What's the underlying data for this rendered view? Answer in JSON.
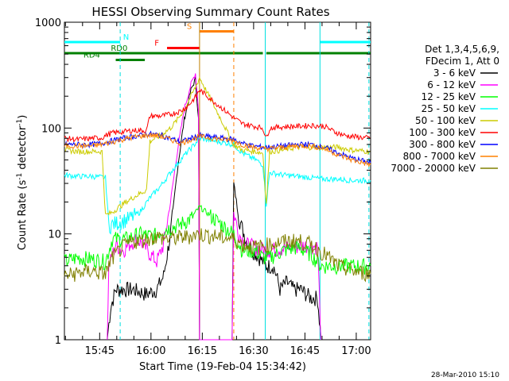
{
  "chart_data": {
    "type": "line",
    "title": "HESSI Observing Summary Count Rates",
    "xlabel": "Start Time (19-Feb-04 15:34:42)",
    "ylabel_main": "Count Rate (s",
    "ylabel_sup1": "-1",
    "ylabel_mid": " detector",
    "ylabel_sup2": "-1",
    "ylabel_end": ")",
    "y_scale": "log",
    "ylim": [
      1,
      1000
    ],
    "xlim_minutes": [
      0,
      89.5
    ],
    "x_ticks": [
      {
        "label": "15:45",
        "minute": 10.3
      },
      {
        "label": "16:00",
        "minute": 25.3
      },
      {
        "label": "16:15",
        "minute": 40.3
      },
      {
        "label": "16:30",
        "minute": 55.3
      },
      {
        "label": "16:45",
        "minute": 70.3
      },
      {
        "label": "17:00",
        "minute": 85.3
      }
    ],
    "y_ticks": [
      {
        "label": "1",
        "value": 1
      },
      {
        "label": "10",
        "value": 10
      },
      {
        "label": "100",
        "value": 100
      },
      {
        "label": "1000",
        "value": 1000
      }
    ],
    "legend_header": [
      "Det 1,3,4,5,6,9,",
      "FDecim 1, Att 0"
    ],
    "series": [
      {
        "name": "3 - 6 keV",
        "color": "#000000",
        "points": [
          [
            12.5,
            1
          ],
          [
            13.5,
            2
          ],
          [
            15,
            3
          ],
          [
            17,
            3
          ],
          [
            20,
            3
          ],
          [
            24,
            2.7
          ],
          [
            27,
            3
          ],
          [
            29,
            4
          ],
          [
            31,
            10
          ],
          [
            33,
            40
          ],
          [
            35,
            120
          ],
          [
            37,
            230
          ],
          [
            38.3,
            290
          ],
          [
            39.2,
            120
          ],
          [
            39.5,
            1
          ],
          [
            49,
            1
          ],
          [
            49.5,
            30
          ],
          [
            51,
            14
          ],
          [
            53,
            9
          ],
          [
            55,
            7
          ],
          [
            57,
            6
          ],
          [
            59,
            5
          ],
          [
            61,
            5
          ],
          [
            62,
            4
          ],
          [
            63,
            3
          ],
          [
            65,
            3.5
          ],
          [
            67,
            3
          ],
          [
            69,
            3
          ],
          [
            72,
            2.5
          ],
          [
            74,
            2.5
          ],
          [
            75,
            1
          ]
        ]
      },
      {
        "name": "6 - 12 keV",
        "color": "#ff00ff",
        "points": [
          [
            12.5,
            1
          ],
          [
            13,
            5
          ],
          [
            15,
            8
          ],
          [
            17,
            7
          ],
          [
            19,
            8
          ],
          [
            21,
            9
          ],
          [
            23,
            8
          ],
          [
            25,
            6.5
          ],
          [
            27,
            5.5
          ],
          [
            29,
            8
          ],
          [
            31,
            20
          ],
          [
            33,
            60
          ],
          [
            35,
            150
          ],
          [
            37,
            260
          ],
          [
            38.3,
            330
          ],
          [
            39.2,
            150
          ],
          [
            39.5,
            1
          ],
          [
            49,
            1
          ],
          [
            49.5,
            16
          ],
          [
            51,
            10
          ],
          [
            53,
            8
          ],
          [
            56,
            7.5
          ],
          [
            59,
            7
          ],
          [
            62,
            7.2
          ],
          [
            66,
            7.5
          ],
          [
            70,
            7.8
          ],
          [
            74,
            7.6
          ],
          [
            75,
            1
          ]
        ]
      },
      {
        "name": "12 - 25 keV",
        "color": "#00ff00",
        "points": [
          [
            0,
            5.5
          ],
          [
            4,
            6
          ],
          [
            8,
            5.8
          ],
          [
            12,
            5.5
          ],
          [
            14,
            9
          ],
          [
            18,
            9
          ],
          [
            22,
            10
          ],
          [
            26,
            9.5
          ],
          [
            29,
            11
          ],
          [
            33,
            12
          ],
          [
            37,
            14
          ],
          [
            39.5,
            18
          ],
          [
            49.5,
            10
          ],
          [
            52,
            7
          ],
          [
            56,
            7
          ],
          [
            58,
            6
          ],
          [
            60,
            6
          ],
          [
            64,
            7
          ],
          [
            68,
            7.5
          ],
          [
            72,
            6.5
          ],
          [
            75,
            5
          ],
          [
            79,
            5
          ],
          [
            84,
            5
          ],
          [
            89.5,
            5
          ]
        ]
      },
      {
        "name": "25 - 50 keV",
        "color": "#00ffff",
        "points": [
          [
            0,
            36
          ],
          [
            4,
            35
          ],
          [
            8,
            35
          ],
          [
            12,
            34
          ],
          [
            13,
            12
          ],
          [
            16,
            13
          ],
          [
            19,
            14
          ],
          [
            22,
            16
          ],
          [
            25,
            22
          ],
          [
            28,
            28
          ],
          [
            31,
            38
          ],
          [
            35,
            55
          ],
          [
            38,
            70
          ],
          [
            39.5,
            80
          ],
          [
            49.5,
            70
          ],
          [
            52,
            58
          ],
          [
            56,
            50
          ],
          [
            58,
            45
          ],
          [
            59,
            19
          ],
          [
            60,
            38
          ],
          [
            64,
            36
          ],
          [
            68,
            35
          ],
          [
            72,
            34
          ],
          [
            76,
            33
          ],
          [
            80,
            33
          ],
          [
            84,
            32
          ],
          [
            89.5,
            32
          ]
        ]
      },
      {
        "name": "50 - 100 keV",
        "color": "#cccc00",
        "points": [
          [
            0,
            62
          ],
          [
            4,
            60
          ],
          [
            8,
            60
          ],
          [
            11,
            60
          ],
          [
            12,
            15
          ],
          [
            14,
            16
          ],
          [
            16,
            18
          ],
          [
            18,
            20
          ],
          [
            20,
            22
          ],
          [
            22,
            24
          ],
          [
            24,
            26
          ],
          [
            25,
            75
          ],
          [
            28,
            85
          ],
          [
            31,
            100
          ],
          [
            33,
            120
          ],
          [
            35,
            150
          ],
          [
            37,
            200
          ],
          [
            38.5,
            250
          ],
          [
            39.5,
            300
          ],
          [
            49.5,
            70
          ],
          [
            52,
            62
          ],
          [
            56,
            60
          ],
          [
            58,
            58
          ],
          [
            59,
            19
          ],
          [
            60,
            60
          ],
          [
            64,
            62
          ],
          [
            68,
            66
          ],
          [
            72,
            66
          ],
          [
            76,
            66
          ],
          [
            80,
            66
          ],
          [
            84,
            62
          ],
          [
            89.5,
            60
          ]
        ]
      },
      {
        "name": "100 - 300 keV",
        "color": "#ff0000",
        "points": [
          [
            0,
            80
          ],
          [
            4,
            78
          ],
          [
            8,
            80
          ],
          [
            11,
            81
          ],
          [
            12,
            85
          ],
          [
            14,
            90
          ],
          [
            17,
            92
          ],
          [
            20,
            95
          ],
          [
            24,
            95
          ],
          [
            25,
            130
          ],
          [
            28,
            130
          ],
          [
            31,
            135
          ],
          [
            34,
            145
          ],
          [
            36,
            160
          ],
          [
            38.5,
            200
          ],
          [
            39.5,
            230
          ],
          [
            49.5,
            125
          ],
          [
            52,
            110
          ],
          [
            55,
            105
          ],
          [
            58,
            100
          ],
          [
            59,
            80
          ],
          [
            60,
            100
          ],
          [
            64,
            103
          ],
          [
            68,
            104
          ],
          [
            72,
            106
          ],
          [
            76,
            104
          ],
          [
            79,
            92
          ],
          [
            82,
            85
          ],
          [
            86,
            82
          ],
          [
            89.5,
            80
          ]
        ]
      },
      {
        "name": "300 - 800 keV",
        "color": "#0000ff",
        "points": [
          [
            0,
            70
          ],
          [
            4,
            70
          ],
          [
            8,
            70
          ],
          [
            11,
            72
          ],
          [
            14,
            76
          ],
          [
            17,
            80
          ],
          [
            21,
            84
          ],
          [
            25,
            88
          ],
          [
            28,
            86
          ],
          [
            31,
            80
          ],
          [
            34,
            74
          ],
          [
            37,
            80
          ],
          [
            39.5,
            85
          ],
          [
            49.5,
            78
          ],
          [
            52,
            72
          ],
          [
            55,
            68
          ],
          [
            58,
            66
          ],
          [
            60,
            66
          ],
          [
            64,
            68
          ],
          [
            68,
            70
          ],
          [
            72,
            70
          ],
          [
            76,
            66
          ],
          [
            80,
            58
          ],
          [
            84,
            52
          ],
          [
            89.5,
            47
          ]
        ]
      },
      {
        "name": "800 - 7000 keV",
        "color": "#ff8000",
        "points": [
          [
            0,
            68
          ],
          [
            4,
            68
          ],
          [
            8,
            68
          ],
          [
            11,
            70
          ],
          [
            14,
            74
          ],
          [
            17,
            78
          ],
          [
            21,
            83
          ],
          [
            25,
            86
          ],
          [
            28,
            84
          ],
          [
            31,
            78
          ],
          [
            34,
            72
          ],
          [
            37,
            78
          ],
          [
            39.5,
            83
          ],
          [
            49.5,
            76
          ],
          [
            52,
            70
          ],
          [
            55,
            66
          ],
          [
            58,
            64
          ],
          [
            60,
            64
          ],
          [
            64,
            66
          ],
          [
            68,
            68
          ],
          [
            72,
            68
          ],
          [
            76,
            64
          ],
          [
            80,
            56
          ],
          [
            84,
            50
          ],
          [
            89.5,
            45
          ]
        ]
      },
      {
        "name": "7000 - 20000 keV",
        "color": "#808000",
        "points": [
          [
            0,
            4
          ],
          [
            4,
            4.3
          ],
          [
            8,
            4.5
          ],
          [
            12,
            4.2
          ],
          [
            14,
            6
          ],
          [
            17,
            7.5
          ],
          [
            20,
            8.5
          ],
          [
            24,
            9
          ],
          [
            27,
            9.5
          ],
          [
            30,
            9
          ],
          [
            33,
            9.2
          ],
          [
            36,
            9.5
          ],
          [
            39.5,
            10
          ],
          [
            49.5,
            9
          ],
          [
            52,
            8
          ],
          [
            56,
            7.5
          ],
          [
            60,
            8
          ],
          [
            64,
            8.5
          ],
          [
            68,
            8.7
          ],
          [
            72,
            8
          ],
          [
            76,
            6.5
          ],
          [
            80,
            5
          ],
          [
            84,
            4.5
          ],
          [
            89.5,
            4.2
          ]
        ]
      }
    ],
    "vlines": [
      {
        "minute": 16.3,
        "color": "#00e0e0",
        "style": "dashed"
      },
      {
        "minute": 39.5,
        "color": "#c08000",
        "style": "solid"
      },
      {
        "minute": 49.5,
        "color": "#ff8000",
        "style": "dashed"
      },
      {
        "minute": 58.7,
        "color": "#00e0e0",
        "style": "solid"
      },
      {
        "minute": 74.7,
        "color": "#00e0e0",
        "style": "solid"
      },
      {
        "minute": 89.0,
        "color": "#00e0e0",
        "style": "dashed"
      }
    ],
    "flag_bars": [
      {
        "label": "N",
        "color": "#00ffff",
        "segments": [
          [
            0,
            16.3
          ],
          [
            74.7,
            89.5
          ]
        ],
        "value": 650,
        "label_minute": 18
      },
      {
        "label": "S",
        "color": "#ff8000",
        "segments": [
          [
            39.5,
            49.5
          ]
        ],
        "value": 820,
        "label_minute": 36.5
      },
      {
        "label": "F",
        "color": "#ff0000",
        "segments": [
          [
            30,
            39.5
          ]
        ],
        "value": 570,
        "label_minute": 27
      },
      {
        "label": "RD0",
        "color": "#008000",
        "segments": [
          [
            0,
            58
          ],
          [
            59,
            89.5
          ]
        ],
        "value": 510,
        "label_minute": 16
      },
      {
        "label": "RD4",
        "color": "#008000",
        "segments": [
          [
            15,
            23.5
          ]
        ],
        "value": 440,
        "label_minute": 8
      }
    ],
    "timestamp": "28-Mar-2010 15:10"
  }
}
